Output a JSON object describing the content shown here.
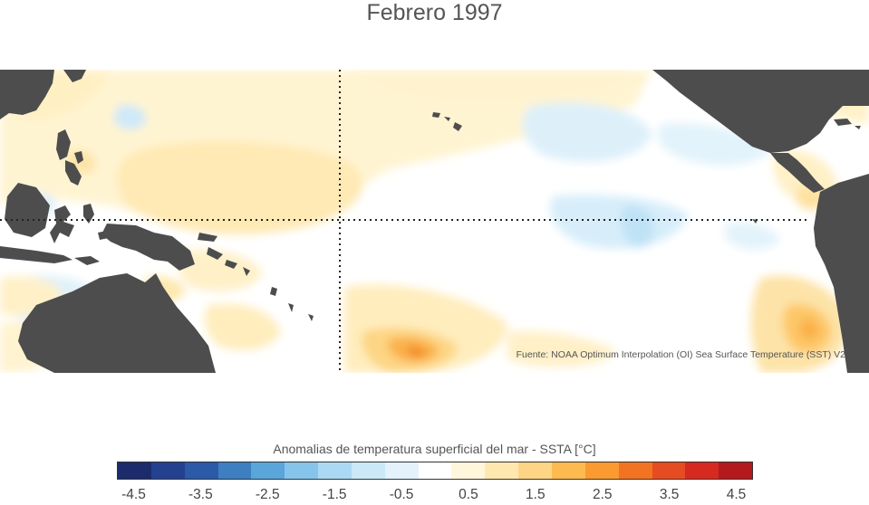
{
  "title": "Febrero 1997",
  "source": "Fuente: NOAA Optimum Interpolation (OI) Sea Surface Temperature (SST) V2",
  "colorbar": {
    "label": "Anomalias de temperatura superficial del mar - SSTA  [°C]",
    "colors": [
      "#1c2b6b",
      "#24418f",
      "#2a5aa8",
      "#3d7fc0",
      "#5aa5da",
      "#86c4ec",
      "#abd9f4",
      "#cae8f8",
      "#e3f2fb",
      "#ffffff",
      "#fff6dc",
      "#ffe8b0",
      "#fdd584",
      "#fdbb4f",
      "#fa9a30",
      "#f27423",
      "#e54c22",
      "#d6291f",
      "#b31a1d"
    ],
    "ticks": [
      "-4.5",
      "-3.5",
      "-2.5",
      "-1.5",
      "-0.5",
      "0.5",
      "1.5",
      "2.5",
      "3.5",
      "4.5"
    ]
  },
  "map": {
    "land_color": "#4d4d4d",
    "ocean_color": "#ffffff",
    "grid_style": "dotted",
    "reference_lines": [
      "equator",
      "dateline"
    ]
  }
}
